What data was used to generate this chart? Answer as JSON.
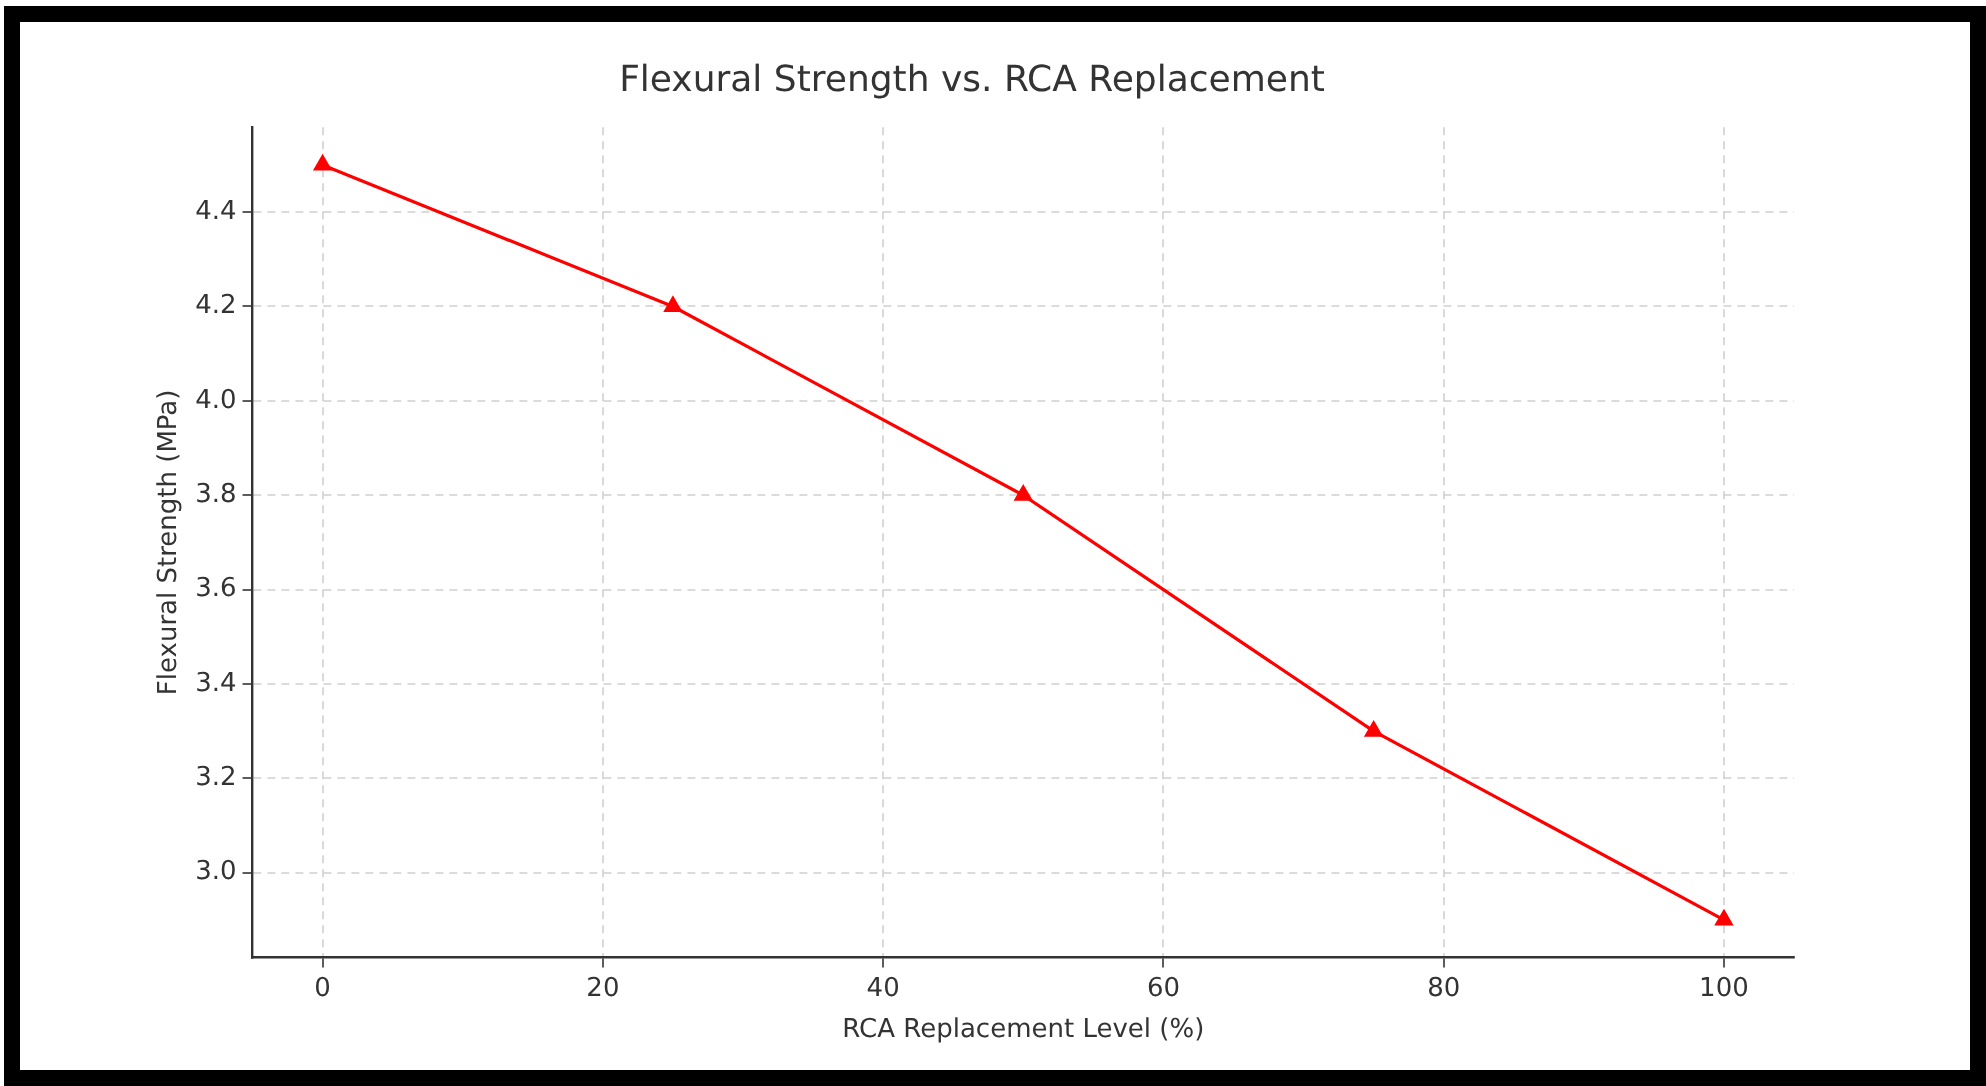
{
  "chart_data": {
    "type": "line",
    "title": "Flexural Strength vs. RCA Replacement",
    "xlabel": "RCA Replacement Level (%)",
    "ylabel": "Flexural Strength (MPa)",
    "x": [
      0,
      25,
      50,
      75,
      100
    ],
    "series": [
      {
        "color": "#ff0000",
        "values": [
          4.5,
          4.2,
          3.8,
          3.3,
          2.9
        ]
      }
    ],
    "xlim": [
      -5,
      105
    ],
    "xticks": [
      0,
      20,
      40,
      60,
      80,
      100
    ],
    "ylim": [
      2.82,
      4.58
    ],
    "yticks": [
      {
        "value": 3.0,
        "label": "3.0"
      },
      {
        "value": 3.2,
        "label": "3.2"
      },
      {
        "value": 3.4,
        "label": "3.4"
      },
      {
        "value": 3.6,
        "label": "3.6"
      },
      {
        "value": 3.8,
        "label": "3.8"
      },
      {
        "value": 4.0,
        "label": "4.0"
      },
      {
        "value": 4.2,
        "label": "4.2"
      },
      {
        "value": 4.4,
        "label": "4.4"
      }
    ],
    "grid": true,
    "legend": false,
    "marker": "triangle",
    "line_style": "solid"
  }
}
